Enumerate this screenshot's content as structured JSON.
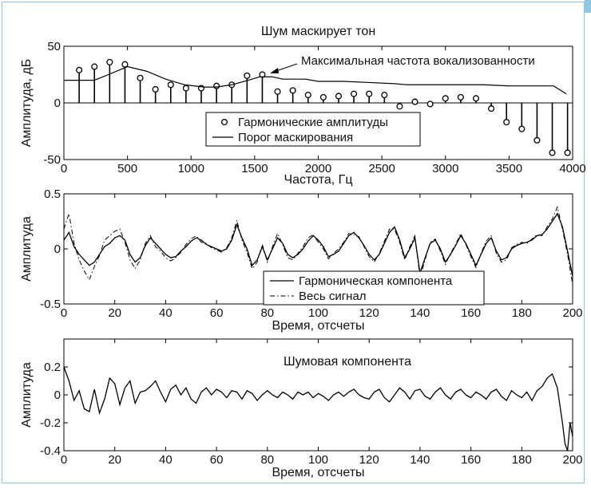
{
  "chart_data": [
    {
      "type": "stem",
      "title": "Шум маскирует тон",
      "xlabel": "Частота, Гц",
      "ylabel": "Амплитуда, дБ",
      "xlim": [
        0,
        4000
      ],
      "ylim": [
        -50,
        50
      ],
      "xticks": [
        0,
        500,
        1000,
        1500,
        2000,
        2500,
        3000,
        3500,
        4000
      ],
      "yticks": [
        -50,
        0,
        50
      ],
      "grid": false,
      "legend_position": "center",
      "annotation": "Максимальная частота вокализованности",
      "series": [
        {
          "name": "Гармонические амплитуды",
          "style": "stem-circle",
          "x": [
            120,
            240,
            360,
            480,
            600,
            720,
            840,
            960,
            1080,
            1200,
            1320,
            1440,
            1560,
            1680,
            1800,
            1920,
            2040,
            2160,
            2280,
            2400,
            2520,
            2640,
            2760,
            2880,
            3000,
            3120,
            3240,
            3360,
            3480,
            3600,
            3720,
            3840,
            3960
          ],
          "y": [
            29,
            32,
            36,
            34,
            22,
            12,
            16,
            13,
            13,
            15,
            16,
            24,
            25,
            10,
            11,
            7,
            5,
            6,
            8,
            8,
            7,
            -3,
            1,
            -1,
            4,
            5,
            4,
            -5,
            -17,
            -23,
            -33,
            -44,
            -44
          ]
        },
        {
          "name": "Порог маскирования",
          "style": "line",
          "x": [
            0,
            120,
            240,
            350,
            500,
            650,
            800,
            950,
            1100,
            1200,
            1320,
            1450,
            1540,
            1640,
            1720,
            1800,
            1900,
            2000,
            2200,
            2400,
            2600,
            2700,
            2900,
            3100,
            3300,
            3500,
            3700,
            3850,
            3950
          ],
          "y": [
            20,
            20,
            20,
            25,
            32,
            28,
            21,
            16,
            14,
            14,
            16,
            20,
            23,
            23,
            21,
            21,
            21,
            19,
            19,
            18,
            17,
            16,
            16,
            16,
            16,
            15,
            15,
            15,
            8
          ]
        }
      ],
      "voicing_cutoff_x": 1560
    },
    {
      "type": "line",
      "xlabel": "Время, отсчеты",
      "ylabel": "Амплитуда",
      "xlim": [
        0,
        200
      ],
      "ylim": [
        -0.5,
        0.5
      ],
      "xticks": [
        0,
        20,
        40,
        60,
        80,
        100,
        120,
        140,
        160,
        180,
        200
      ],
      "yticks": [
        -0.5,
        0,
        0.5
      ],
      "grid": false,
      "legend_position": "bottom-center",
      "series": [
        {
          "name": "Гармоническая компонента",
          "style": "solid",
          "x": [
            0,
            2,
            4,
            6,
            8,
            10,
            12,
            14,
            16,
            18,
            20,
            22,
            24,
            26,
            28,
            30,
            32,
            34,
            36,
            38,
            40,
            42,
            44,
            46,
            48,
            50,
            52,
            54,
            56,
            58,
            60,
            62,
            64,
            66,
            68,
            70,
            72,
            74,
            76,
            78,
            80,
            82,
            84,
            86,
            88,
            90,
            92,
            94,
            96,
            98,
            100,
            102,
            104,
            106,
            108,
            110,
            112,
            114,
            116,
            118,
            120,
            122,
            124,
            126,
            128,
            130,
            132,
            134,
            136,
            138,
            140,
            142,
            144,
            146,
            148,
            150,
            152,
            154,
            156,
            158,
            160,
            162,
            164,
            166,
            168,
            170,
            172,
            174,
            176,
            178,
            180,
            182,
            184,
            186,
            188,
            190,
            192,
            194,
            196,
            198,
            200
          ],
          "y": [
            0.08,
            0.15,
            0.02,
            -0.05,
            -0.1,
            -0.15,
            -0.12,
            -0.05,
            0.02,
            0.05,
            0.1,
            0.12,
            0.08,
            -0.05,
            -0.12,
            -0.08,
            0.03,
            0.1,
            0.05,
            0.0,
            -0.05,
            -0.08,
            -0.07,
            -0.02,
            0.02,
            0.07,
            0.1,
            0.08,
            0.04,
            0.02,
            0.0,
            -0.02,
            0.0,
            0.08,
            0.22,
            0.1,
            0.0,
            -0.15,
            -0.1,
            0.02,
            -0.1,
            0.0,
            0.1,
            0.05,
            -0.05,
            -0.08,
            -0.05,
            0.0,
            0.07,
            0.12,
            0.08,
            0.02,
            -0.07,
            -0.05,
            -0.02,
            0.05,
            0.12,
            0.15,
            0.1,
            0.03,
            -0.05,
            -0.1,
            -0.05,
            0.05,
            0.15,
            0.2,
            0.08,
            -0.08,
            0.0,
            0.1,
            -0.22,
            -0.08,
            0.05,
            0.08,
            0.0,
            -0.12,
            -0.05,
            0.03,
            0.12,
            0.05,
            -0.05,
            -0.15,
            -0.05,
            0.05,
            0.1,
            -0.02,
            -0.1,
            -0.08,
            0.0,
            0.03,
            0.05,
            0.06,
            0.08,
            0.12,
            0.13,
            0.18,
            0.25,
            0.32,
            0.2,
            -0.02,
            -0.25
          ]
        },
        {
          "name": "Весь сигнал",
          "style": "dashdot",
          "x": [
            0,
            2,
            4,
            6,
            8,
            10,
            12,
            14,
            16,
            18,
            20,
            22,
            24,
            26,
            28,
            30,
            32,
            34,
            36,
            38,
            40,
            42,
            44,
            46,
            48,
            50,
            52,
            54,
            56,
            58,
            60,
            62,
            64,
            66,
            68,
            70,
            72,
            74,
            76,
            78,
            80,
            82,
            84,
            86,
            88,
            90,
            92,
            94,
            96,
            98,
            100,
            102,
            104,
            106,
            108,
            110,
            112,
            114,
            116,
            118,
            120,
            122,
            124,
            126,
            128,
            130,
            132,
            134,
            136,
            138,
            140,
            142,
            144,
            146,
            148,
            150,
            152,
            154,
            156,
            158,
            160,
            162,
            164,
            166,
            168,
            170,
            172,
            174,
            176,
            178,
            180,
            182,
            184,
            186,
            188,
            190,
            192,
            194,
            196,
            198,
            200
          ],
          "y": [
            0.18,
            0.32,
            0.05,
            -0.1,
            -0.2,
            -0.28,
            -0.16,
            -0.06,
            0.08,
            0.12,
            0.16,
            0.18,
            0.06,
            -0.1,
            -0.18,
            -0.1,
            0.05,
            0.12,
            0.02,
            -0.02,
            -0.08,
            -0.11,
            -0.08,
            -0.03,
            0.04,
            0.09,
            0.12,
            0.06,
            0.05,
            0.01,
            -0.01,
            -0.03,
            0.01,
            0.1,
            0.26,
            0.08,
            -0.03,
            -0.18,
            -0.12,
            0.04,
            -0.12,
            0.02,
            0.14,
            0.04,
            -0.08,
            -0.1,
            -0.04,
            0.02,
            0.1,
            0.13,
            0.06,
            0.0,
            -0.09,
            -0.04,
            0.0,
            0.06,
            0.14,
            0.13,
            0.11,
            0.02,
            -0.07,
            -0.12,
            -0.04,
            0.07,
            0.18,
            0.18,
            0.06,
            -0.1,
            0.02,
            0.12,
            -0.26,
            -0.1,
            0.06,
            0.09,
            -0.02,
            -0.14,
            -0.04,
            0.04,
            0.14,
            0.04,
            -0.07,
            -0.17,
            -0.04,
            0.07,
            0.12,
            -0.04,
            -0.12,
            -0.1,
            0.01,
            0.04,
            0.06,
            0.05,
            0.09,
            0.13,
            0.12,
            0.2,
            0.27,
            0.38,
            0.18,
            -0.05,
            -0.32
          ]
        }
      ]
    },
    {
      "type": "line",
      "xlabel": "Время, отсчеты",
      "ylabel": "Амплитуда",
      "xlim": [
        0,
        200
      ],
      "ylim": [
        -0.4,
        0.4
      ],
      "xticks": [
        0,
        20,
        40,
        60,
        80,
        100,
        120,
        140,
        160,
        180,
        200
      ],
      "yticks": [
        -0.4,
        -0.2,
        0,
        0.2
      ],
      "grid": false,
      "annotation": "Шумовая компонента",
      "series": [
        {
          "style": "solid",
          "x": [
            0,
            2,
            4,
            6,
            8,
            10,
            12,
            14,
            16,
            18,
            20,
            22,
            24,
            26,
            28,
            30,
            32,
            34,
            36,
            38,
            40,
            42,
            44,
            46,
            48,
            50,
            52,
            54,
            56,
            58,
            60,
            62,
            64,
            66,
            68,
            70,
            72,
            74,
            76,
            78,
            80,
            82,
            84,
            86,
            88,
            90,
            92,
            94,
            96,
            98,
            100,
            102,
            104,
            106,
            108,
            110,
            112,
            114,
            116,
            118,
            120,
            122,
            124,
            126,
            128,
            130,
            132,
            134,
            136,
            138,
            140,
            142,
            144,
            146,
            148,
            150,
            152,
            154,
            156,
            158,
            160,
            162,
            164,
            166,
            168,
            170,
            172,
            174,
            176,
            178,
            180,
            182,
            184,
            186,
            188,
            190,
            192,
            194,
            196,
            197,
            198,
            199,
            200
          ],
          "y": [
            0.2,
            0.1,
            -0.04,
            0.03,
            -0.1,
            -0.12,
            0.04,
            -0.13,
            -0.03,
            0.12,
            0.08,
            -0.07,
            0.05,
            0.1,
            -0.06,
            0.02,
            0.03,
            0.06,
            0.1,
            0.02,
            -0.05,
            0.04,
            0.07,
            0.0,
            0.05,
            -0.03,
            -0.06,
            0.02,
            0.05,
            0.0,
            0.04,
            0.02,
            -0.02,
            0.03,
            0.02,
            -0.03,
            0.03,
            0.01,
            -0.04,
            0.0,
            0.03,
            0.0,
            -0.02,
            0.02,
            0.0,
            -0.03,
            0.02,
            0.0,
            0.02,
            -0.02,
            0.01,
            -0.01,
            -0.04,
            0.0,
            0.02,
            -0.01,
            0.02,
            0.04,
            0.0,
            -0.02,
            -0.03,
            0.02,
            0.04,
            -0.02,
            -0.05,
            0.0,
            0.05,
            0.02,
            -0.03,
            0.03,
            0.04,
            -0.01,
            -0.03,
            0.02,
            0.05,
            0.0,
            -0.03,
            0.02,
            0.04,
            0.0,
            -0.02,
            0.02,
            0.0,
            -0.03,
            0.02,
            0.04,
            -0.01,
            -0.04,
            0.03,
            0.0,
            -0.02,
            0.02,
            -0.04,
            0.03,
            0.06,
            0.12,
            0.15,
            0.05,
            -0.2,
            -0.35,
            -0.4,
            -0.2,
            -0.3
          ]
        }
      ]
    }
  ]
}
